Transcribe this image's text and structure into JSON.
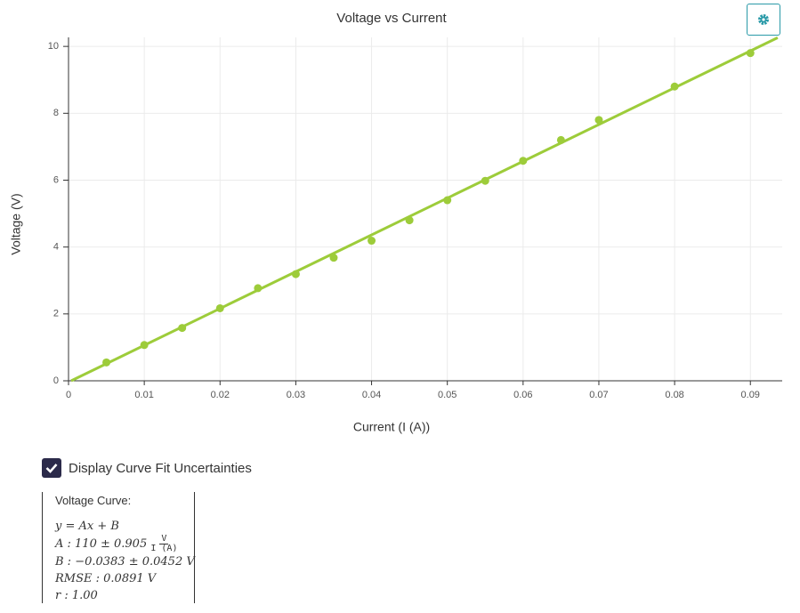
{
  "chart_data": {
    "type": "scatter",
    "title": "Voltage vs Current",
    "x_label": "Current (I (A))",
    "y_label": "Voltage (V)",
    "xlim": [
      0,
      0.0942
    ],
    "ylim": [
      0,
      10.27
    ],
    "xticks": [
      0,
      0.01,
      0.02,
      0.03,
      0.04,
      0.05,
      0.06,
      0.07,
      0.08,
      0.09
    ],
    "yticks": [
      0,
      2,
      4,
      6,
      8,
      10
    ],
    "grid": true,
    "series": [
      {
        "type": "scatter",
        "color": "#9dcc3a",
        "x": [
          0.005,
          0.01,
          0.015,
          0.02,
          0.025,
          0.03,
          0.035,
          0.04,
          0.045,
          0.05,
          0.055,
          0.06,
          0.065,
          0.07,
          0.08,
          0.09
        ],
        "values": [
          0.55,
          1.07,
          1.58,
          2.17,
          2.77,
          3.19,
          3.68,
          4.19,
          4.8,
          5.4,
          5.98,
          6.58,
          7.2,
          7.8,
          8.8,
          9.8
        ]
      },
      {
        "type": "line",
        "color": "#9dcc3a",
        "x": [
          0.00035,
          0.0936
        ],
        "values": [
          0,
          10.26
        ]
      }
    ]
  },
  "checkbox": {
    "label": "Display Curve Fit Uncertainties",
    "checked": true
  },
  "fit_panel": {
    "heading": "Voltage Curve:",
    "equation": "y = Ax + B",
    "a": "A : 110 ± 0.905",
    "a_unit_num": "V",
    "a_unit_den": "I (A)",
    "b": "B : −0.0383 ± 0.0452 V",
    "rmse": "RMSE : 0.0891 V",
    "r": "r : 1.00"
  }
}
